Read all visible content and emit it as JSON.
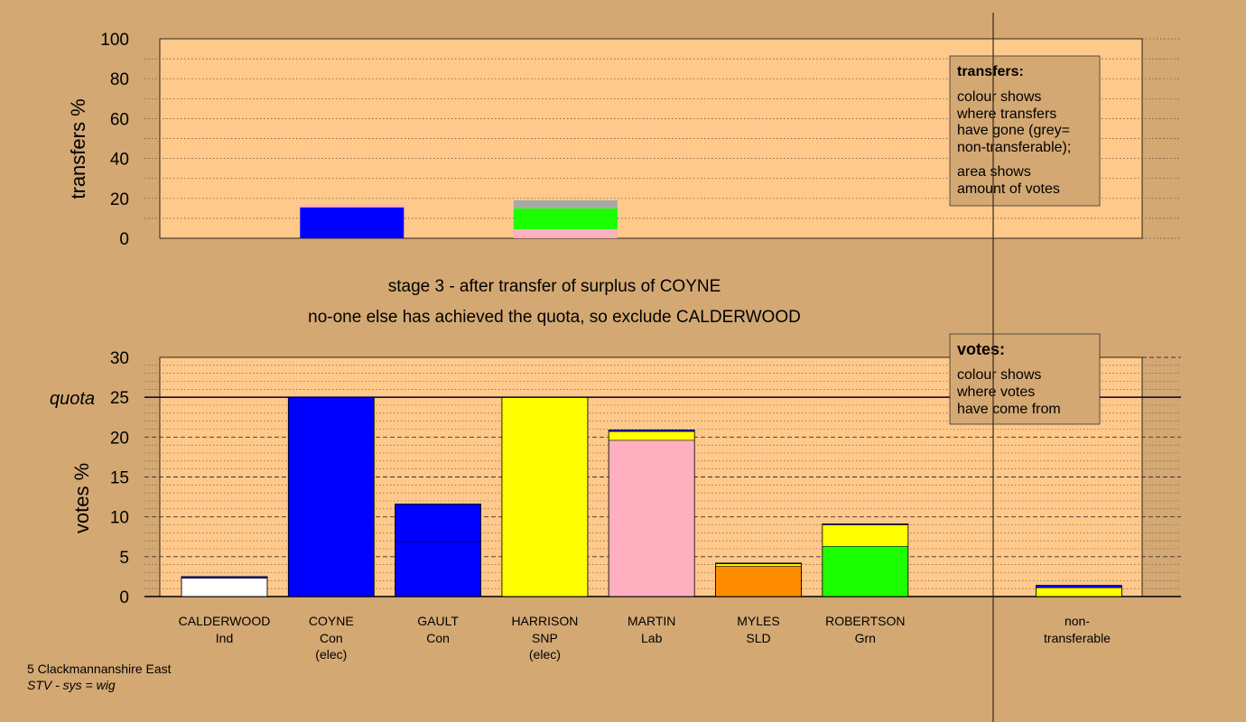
{
  "colors": {
    "background": "#d4a873",
    "plot_area": "#ffc98b",
    "con": "#0000ff",
    "snp": "#ffff00",
    "lab": "#ffb0c0",
    "sld": "#ff8c00",
    "grn": "#1cff00",
    "ind": "#ffffff",
    "nontransferable": "#a8a8a8",
    "outline": "#000033"
  },
  "headings": {
    "line1": "stage 3 - after transfer of surplus of COYNE",
    "line2": "no-one else has achieved the quota, so exclude CALDERWOOD"
  },
  "legend_transfers": {
    "title": "transfers:",
    "lines": [
      "colour shows",
      "where transfers",
      "have gone (grey=",
      "non-transferable);"
    ],
    "lines2": [
      "area shows",
      "amount of votes"
    ]
  },
  "legend_votes": {
    "title": "votes:",
    "lines": [
      "colour shows",
      "where votes",
      "have come from"
    ]
  },
  "footer": {
    "line1": "5 Clackmannanshire East",
    "line2": "STV - sys = wig"
  },
  "quota_label": "quota",
  "chart_data": [
    {
      "type": "bar",
      "stacked": true,
      "ylabel": "transfers %",
      "ylim": [
        0,
        100
      ],
      "yticks": [
        0,
        20,
        40,
        60,
        80,
        100
      ],
      "grid": true,
      "slots": [
        "CALDERWOOD",
        "COYNE",
        "GAULT",
        "HARRISON",
        "MARTIN",
        "MYLES",
        "ROBERTSON",
        "non-transferable"
      ],
      "bars": [
        {
          "slot": 1,
          "segments": [
            {
              "party": "con",
              "value": 15.5
            },
            {
              "party": "lab",
              "value": 1.2
            }
          ]
        },
        {
          "slot": 3,
          "segments": [
            {
              "party": "lab",
              "value": 4.5
            },
            {
              "party": "grn",
              "value": 10.5
            },
            {
              "party": "nontransferable",
              "value": 4.0
            }
          ]
        }
      ]
    },
    {
      "type": "bar",
      "stacked": true,
      "ylabel": "votes %",
      "ylim": [
        0,
        30
      ],
      "yticks": [
        0,
        5,
        10,
        15,
        20,
        25,
        30
      ],
      "quota": 25,
      "grid": true,
      "candidates": [
        {
          "name": "CALDERWOOD",
          "party": "Ind",
          "elec": "",
          "segments": [
            {
              "party": "ind",
              "value": 2.3
            },
            {
              "party": "con",
              "value": 0.2
            }
          ]
        },
        {
          "name": "COYNE",
          "party": "Con",
          "elec": "(elec)",
          "segments": [
            {
              "party": "con",
              "value": 25.0
            }
          ]
        },
        {
          "name": "GAULT",
          "party": "Con",
          "elec": "",
          "segments": [
            {
              "party": "con",
              "value": 6.9
            },
            {
              "party": "con",
              "value": 4.7
            }
          ]
        },
        {
          "name": "HARRISON",
          "party": "SNP",
          "elec": "(elec)",
          "segments": [
            {
              "party": "snp",
              "value": 25.0
            }
          ]
        },
        {
          "name": "MARTIN",
          "party": "Lab",
          "elec": "",
          "segments": [
            {
              "party": "lab",
              "value": 19.6
            },
            {
              "party": "snp",
              "value": 1.1
            },
            {
              "party": "con",
              "value": 0.2
            }
          ]
        },
        {
          "name": "MYLES",
          "party": "SLD",
          "elec": "",
          "segments": [
            {
              "party": "sld",
              "value": 3.8
            },
            {
              "party": "snp",
              "value": 0.3
            },
            {
              "party": "con",
              "value": 0.1
            }
          ]
        },
        {
          "name": "ROBERTSON",
          "party": "Grn",
          "elec": "",
          "segments": [
            {
              "party": "grn",
              "value": 6.3
            },
            {
              "party": "snp",
              "value": 2.7
            },
            {
              "party": "con",
              "value": 0.1
            }
          ]
        },
        {
          "name": "non-",
          "party": "transferable",
          "elec": "",
          "segments": [
            {
              "party": "snp",
              "value": 1.1
            },
            {
              "party": "con",
              "value": 0.3
            }
          ]
        }
      ]
    }
  ]
}
